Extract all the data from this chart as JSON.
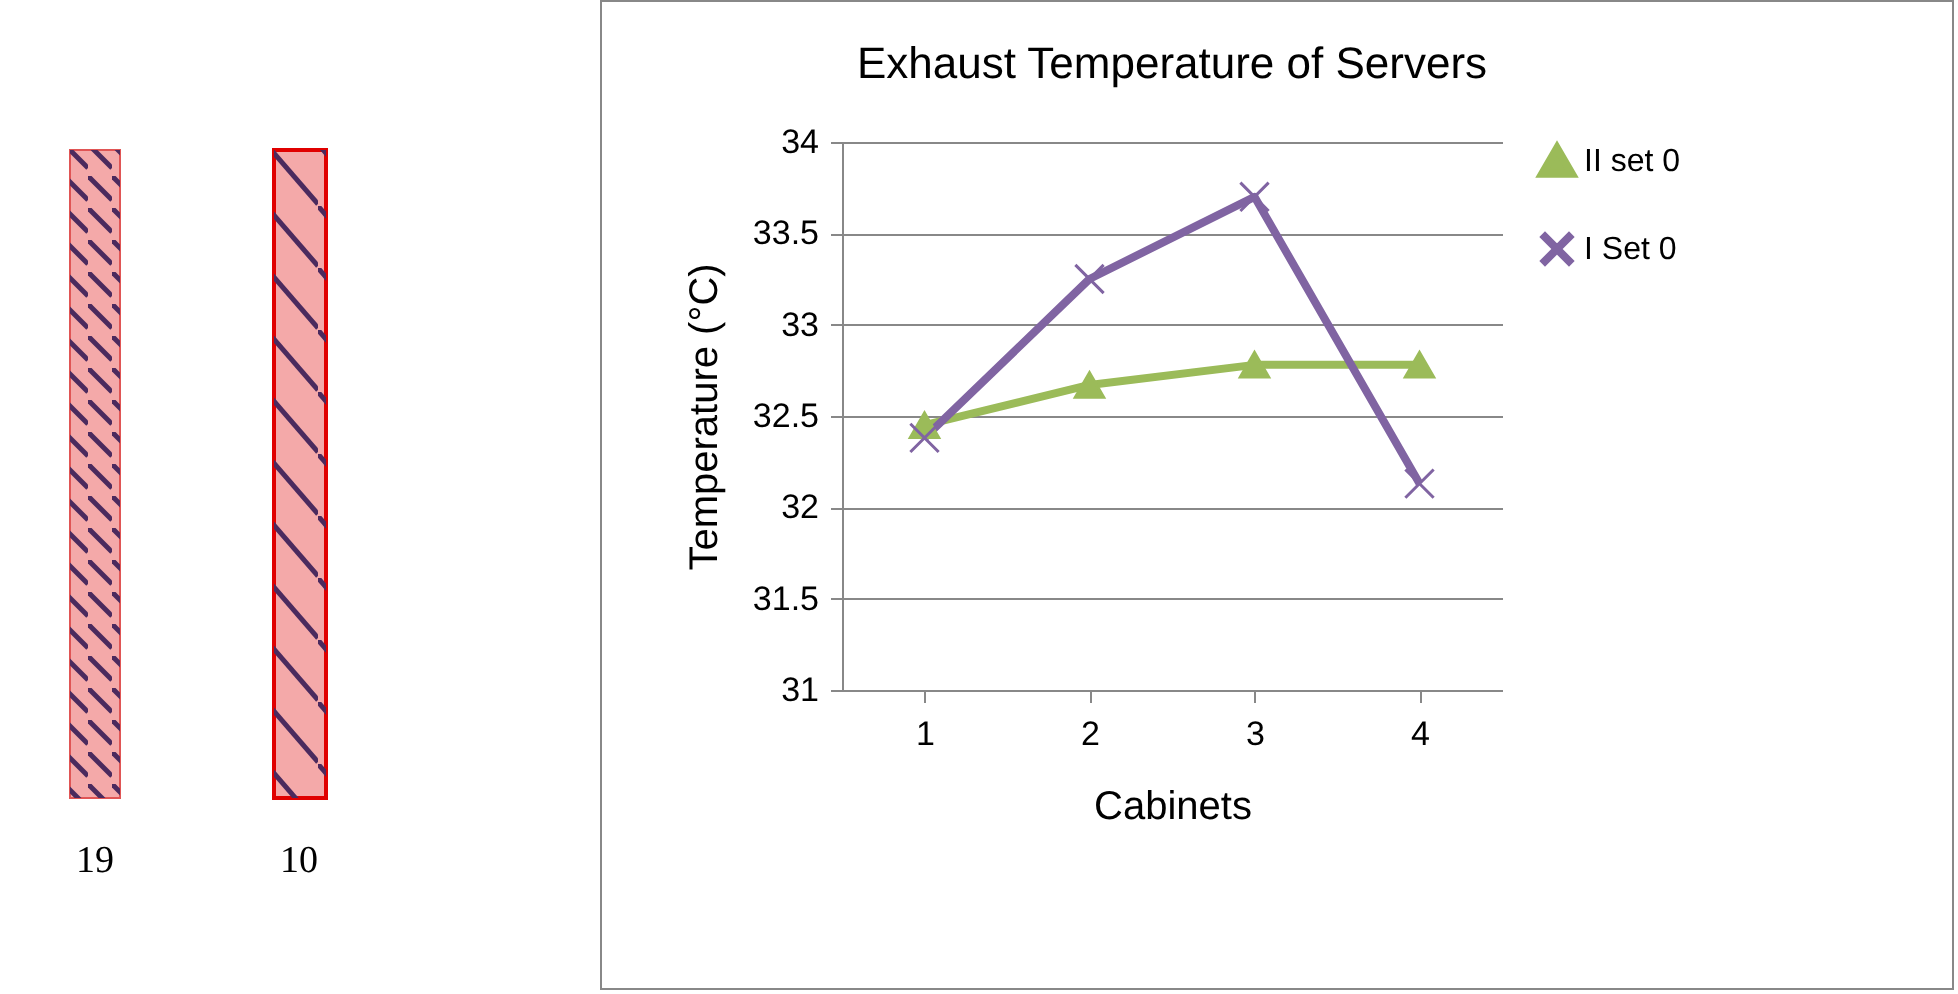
{
  "chart_data": {
    "type": "line",
    "title": "Exhaust Temperature of Servers",
    "xlabel": "Cabinets",
    "ylabel": "Temperature (°C)",
    "categories": [
      "1",
      "2",
      "3",
      "4"
    ],
    "series": [
      {
        "name": "II set 0",
        "color": "#9bbb59",
        "marker": "triangle",
        "values": [
          32.45,
          32.67,
          32.78,
          32.78
        ]
      },
      {
        "name": "I Set 0",
        "color": "#8064a2",
        "marker": "cross",
        "values": [
          32.38,
          33.25,
          33.7,
          32.13
        ]
      }
    ],
    "ylim": [
      31,
      34
    ],
    "yticks": [
      31,
      31.5,
      32,
      32.5,
      33,
      33.5,
      34
    ],
    "grid": "y",
    "legend": "right",
    "annotations": [
      "19",
      "10"
    ]
  }
}
